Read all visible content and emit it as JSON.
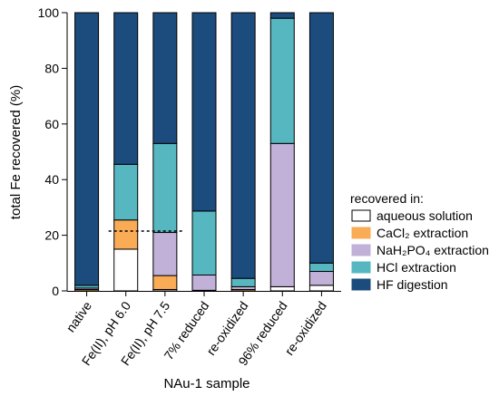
{
  "chart_data": {
    "type": "bar",
    "stacked": true,
    "categories": [
      "native",
      "Fe(II), pH 6.0",
      "Fe(II), pH 7.5",
      "7% reduced",
      "re-oxidized",
      "96% reduced",
      "re-oxidized"
    ],
    "series": [
      {
        "name": "aqueous solution",
        "color": "#ffffff",
        "values": [
          0,
          15,
          0.5,
          0,
          0,
          1.5,
          2
        ]
      },
      {
        "name": "CaCl₂ extraction",
        "color": "#f9ab56",
        "values": [
          0.5,
          10.5,
          5,
          0.2,
          0.5,
          0,
          0
        ]
      },
      {
        "name": "NaH₂PO₄ extraction",
        "color": "#c1b0d7",
        "values": [
          0.5,
          0,
          15.5,
          5.5,
          1,
          51.5,
          5
        ]
      },
      {
        "name": "HCl extraction",
        "color": "#56b7c1",
        "values": [
          1,
          20,
          32,
          23,
          3,
          45,
          3
        ]
      },
      {
        "name": "HF digestion",
        "color": "#1c4b7d",
        "values": [
          98,
          54.5,
          47,
          71.3,
          95.5,
          2,
          90
        ]
      }
    ],
    "xlabel": "NAu-1 sample",
    "ylabel": "total Fe recovered (%)",
    "ylim": [
      0,
      100
    ],
    "yticks": [
      0,
      20,
      40,
      60,
      80,
      100
    ],
    "legend_title": "recovered in:",
    "legend_position": "right",
    "reference_line": {
      "y": 21.5,
      "style": "dashed",
      "spans_categories": [
        1,
        2
      ]
    },
    "grid": false
  }
}
